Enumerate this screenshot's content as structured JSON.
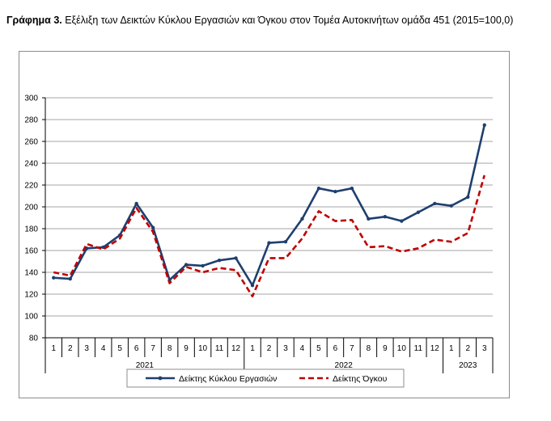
{
  "title": {
    "prefix": "Γράφημα 3.",
    "text": " Εξέλιξη των Δεικτών Κύκλου Εργασιών και Όγκου στον Τομέα Αυτοκινήτων ομάδα 451 (2015=100,0)"
  },
  "colors": {
    "turnover": "#1f3f6e",
    "volume": "#c00000",
    "grid": "#a6a6a6",
    "axis": "#000000"
  },
  "chart_data": {
    "type": "line",
    "categories": [
      "1",
      "2",
      "3",
      "4",
      "5",
      "6",
      "7",
      "8",
      "9",
      "10",
      "11",
      "12",
      "1",
      "2",
      "3",
      "4",
      "5",
      "6",
      "7",
      "8",
      "9",
      "10",
      "11",
      "12",
      "1",
      "2",
      "3"
    ],
    "years": [
      {
        "label": "2021",
        "count": 12
      },
      {
        "label": "2022",
        "count": 12
      },
      {
        "label": "2023",
        "count": 3
      }
    ],
    "ylim": [
      80,
      300
    ],
    "yticks": [
      80,
      100,
      120,
      140,
      160,
      180,
      200,
      220,
      240,
      260,
      280,
      300
    ],
    "grid": true,
    "legend_position": "bottom",
    "series": [
      {
        "name": "Δείκτης Κύκλου Εργασιών",
        "style": "solid-markers",
        "values": [
          135,
          134,
          162,
          163,
          174,
          203,
          181,
          133,
          147,
          146,
          151,
          153,
          128,
          167,
          168,
          189,
          217,
          214,
          217,
          189,
          191,
          187,
          195,
          203,
          201,
          209,
          275
        ]
      },
      {
        "name": "Δείκτης Όγκου",
        "style": "dashed",
        "values": [
          140,
          137,
          166,
          161,
          171,
          199,
          177,
          130,
          145,
          140,
          144,
          142,
          118,
          153,
          153,
          171,
          196,
          187,
          188,
          163,
          164,
          159,
          162,
          170,
          168,
          176,
          229
        ]
      }
    ]
  }
}
